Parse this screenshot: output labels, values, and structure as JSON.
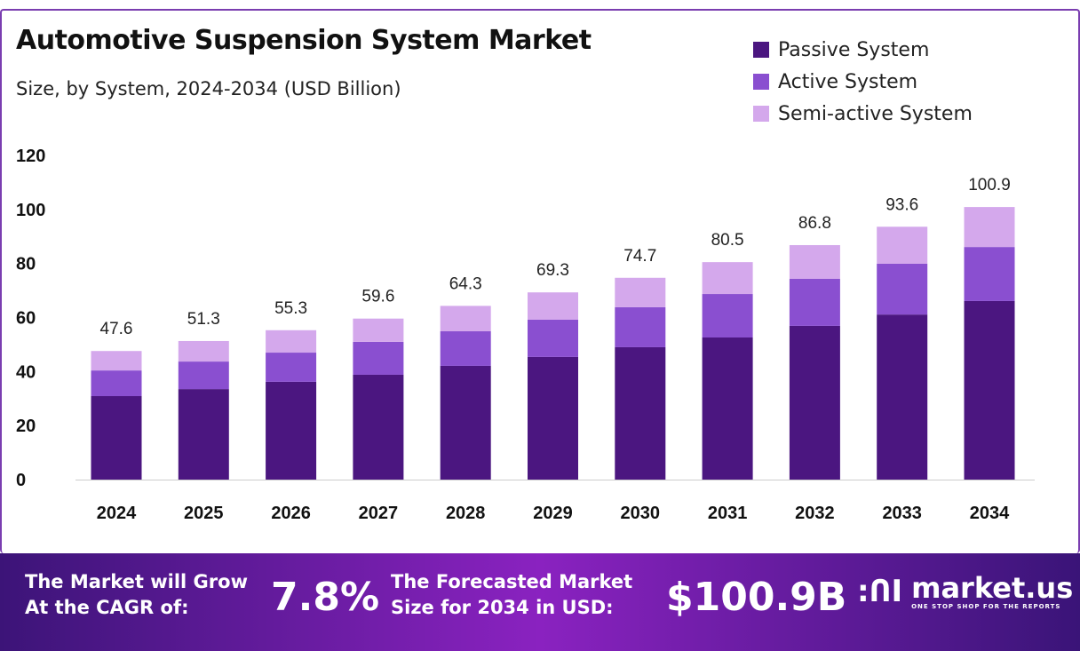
{
  "chart_data": {
    "type": "bar",
    "stacked": true,
    "title": "Automotive Suspension System Market",
    "subtitle": "Size, by System, 2024-2034 (USD Billion)",
    "categories": [
      "2024",
      "2025",
      "2026",
      "2027",
      "2028",
      "2029",
      "2030",
      "2031",
      "2032",
      "2033",
      "2034"
    ],
    "series": [
      {
        "name": "Passive System",
        "color": "#4b1680",
        "values": [
          30.9,
          33.5,
          36.2,
          38.8,
          42.1,
          45.4,
          49.0,
          52.6,
          56.9,
          61.1,
          66.1
        ]
      },
      {
        "name": "Active System",
        "color": "#8a4fd0",
        "values": [
          9.5,
          10.2,
          10.8,
          12.2,
          12.8,
          13.8,
          14.8,
          16.1,
          17.4,
          18.8,
          20.0
        ]
      },
      {
        "name": "Semi-active System",
        "color": "#d4a8ec",
        "values": [
          7.2,
          7.6,
          8.3,
          8.6,
          9.4,
          10.1,
          10.9,
          11.8,
          12.5,
          13.7,
          14.8
        ]
      }
    ],
    "totals": [
      "47.6",
      "51.3",
      "55.3",
      "59.6",
      "64.3",
      "69.3",
      "74.7",
      "80.5",
      "86.8",
      "93.6",
      "100.9"
    ],
    "yticks": [
      "0",
      "20",
      "40",
      "60",
      "80",
      "100",
      "120"
    ],
    "ylim": [
      0,
      120
    ],
    "grid": false,
    "legend": "top-right"
  },
  "footer": {
    "cagr_label_1": "The Market will Grow",
    "cagr_label_2": "At the CAGR of:",
    "cagr_value": "7.8%",
    "forecast_label_1": "The Forecasted Market",
    "forecast_label_2": "Size for 2034 in USD:",
    "forecast_value": "$100.9B",
    "logo_name": "market.us",
    "logo_tagline": "ONE STOP SHOP FOR THE REPORTS"
  }
}
